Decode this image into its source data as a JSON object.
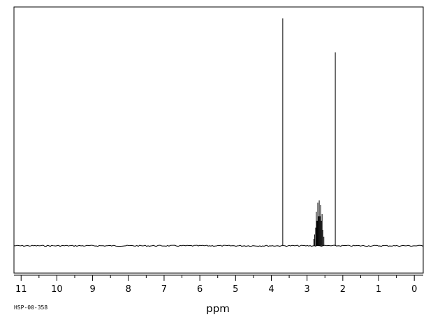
{
  "chart_data": {
    "type": "line",
    "title": "",
    "xlabel": "ppm",
    "ylabel": "",
    "spectrum_code": "HSP-00-358",
    "x_reversed": true,
    "xlim": [
      11.2,
      -0.25
    ],
    "ylim": [
      -0.12,
      1.05
    ],
    "grid": false,
    "x_ticks": [
      11,
      10,
      9,
      8,
      7,
      6,
      5,
      4,
      3,
      2,
      1,
      0
    ],
    "x_tick_labels": [
      "11",
      "10",
      "9",
      "8",
      "7",
      "6",
      "5",
      "4",
      "3",
      "2",
      "1",
      "0"
    ],
    "series": [
      {
        "values": [
          {
            "x": 3.68,
            "y": 1.0
          },
          {
            "x": 2.81,
            "y": 0.03
          },
          {
            "x": 2.79,
            "y": 0.05
          },
          {
            "x": 2.76,
            "y": 0.08
          },
          {
            "x": 2.74,
            "y": 0.15
          },
          {
            "x": 2.72,
            "y": 0.11
          },
          {
            "x": 2.7,
            "y": 0.19
          },
          {
            "x": 2.68,
            "y": 0.13
          },
          {
            "x": 2.66,
            "y": 0.2
          },
          {
            "x": 2.64,
            "y": 0.13
          },
          {
            "x": 2.62,
            "y": 0.18
          },
          {
            "x": 2.6,
            "y": 0.11
          },
          {
            "x": 2.58,
            "y": 0.14
          },
          {
            "x": 2.56,
            "y": 0.07
          },
          {
            "x": 2.53,
            "y": 0.04
          },
          {
            "x": 2.21,
            "y": 0.85
          }
        ]
      }
    ]
  }
}
